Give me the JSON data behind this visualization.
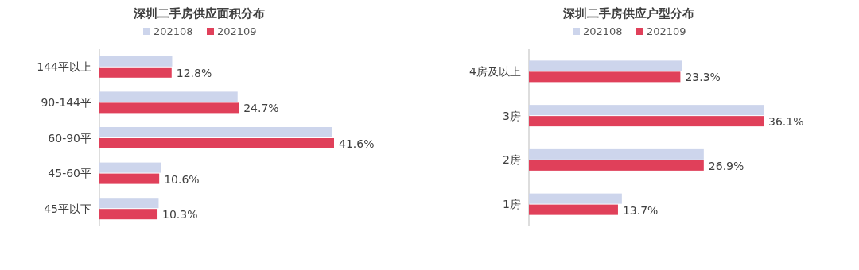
{
  "chart_data": [
    {
      "type": "bar",
      "orientation": "horizontal",
      "title": "深圳二手房供应面积分布",
      "legend": "top",
      "categories": [
        "144平以上",
        "90-144平",
        "60-90平",
        "45-60平",
        "45平以下"
      ],
      "series": [
        {
          "name": "202108",
          "color": "#cdd5ec",
          "values": [
            12.9,
            24.5,
            41.3,
            11.0,
            10.5
          ]
        },
        {
          "name": "202109",
          "color": "#e0405a",
          "values": [
            12.8,
            24.7,
            41.6,
            10.6,
            10.3
          ],
          "value_labels": [
            "12.8%",
            "24.7%",
            "41.6%",
            "10.6%",
            "10.3%"
          ]
        }
      ]
    },
    {
      "type": "bar",
      "orientation": "horizontal",
      "title": "深圳二手房供应户型分布",
      "legend": "top",
      "categories": [
        "4房及以上",
        "3房",
        "2房",
        "1房"
      ],
      "series": [
        {
          "name": "202108",
          "color": "#cdd5ec",
          "values": [
            23.5,
            36.1,
            26.9,
            14.3
          ]
        },
        {
          "name": "202109",
          "color": "#e0405a",
          "values": [
            23.3,
            36.1,
            26.9,
            13.7
          ],
          "value_labels": [
            "23.3%",
            "36.1%",
            "26.9%",
            "13.7%"
          ]
        }
      ]
    }
  ]
}
